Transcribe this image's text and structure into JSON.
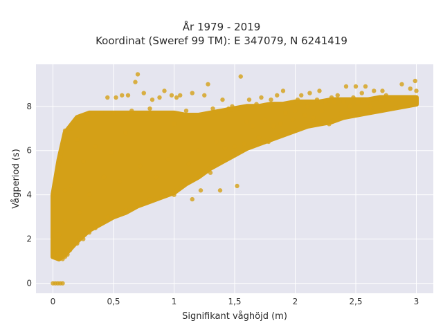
{
  "chart_data": {
    "type": "scatter",
    "title_lines": [
      "År 1979 - 2019",
      "Koordinat (Sweref 99 TM): E 347079, N 6241419"
    ],
    "xlabel": "Signifikant våghöjd (m)",
    "ylabel": "Vågperiod (s)",
    "xlim": [
      -0.14,
      3.14
    ],
    "ylim": [
      -0.45,
      9.9
    ],
    "xticks": [
      0,
      0.5,
      1,
      1.5,
      2,
      2.5,
      3
    ],
    "xtick_labels": [
      "0",
      "0,5",
      "1",
      "1,5",
      "2",
      "2,5",
      "3"
    ],
    "yticks": [
      0,
      2,
      4,
      6,
      8
    ],
    "ytick_labels": [
      "0",
      "2",
      "4",
      "6",
      "8"
    ],
    "grid": true,
    "legend": "none",
    "colors": {
      "marker": "#d4a017",
      "plot_background": "#e5e5ef",
      "grid": "#ffffff"
    },
    "series": [
      {
        "points": [
          [
            0.0,
            0.0
          ],
          [
            0.02,
            0.0
          ],
          [
            0.04,
            0.0
          ],
          [
            0.06,
            0.0
          ],
          [
            0.08,
            0.0
          ],
          [
            0.0,
            1.3
          ],
          [
            0.0,
            2.5
          ],
          [
            0.0,
            3.4
          ],
          [
            0.0,
            4.0
          ],
          [
            0.02,
            1.4
          ],
          [
            0.02,
            4.6
          ],
          [
            0.03,
            1.5
          ],
          [
            0.04,
            1.3
          ],
          [
            0.05,
            1.2
          ],
          [
            0.05,
            2.2
          ],
          [
            0.06,
            5.7
          ],
          [
            0.08,
            1.1
          ],
          [
            0.1,
            1.2
          ],
          [
            0.1,
            2.8
          ],
          [
            0.1,
            4.2
          ],
          [
            0.1,
            6.9
          ],
          [
            0.12,
            1.3
          ],
          [
            0.14,
            1.5
          ],
          [
            0.15,
            7.0
          ],
          [
            0.15,
            4.4
          ],
          [
            0.2,
            1.8
          ],
          [
            0.2,
            6.5
          ],
          [
            0.22,
            3.2
          ],
          [
            0.25,
            2.0
          ],
          [
            0.25,
            5.5
          ],
          [
            0.28,
            7.4
          ],
          [
            0.3,
            2.3
          ],
          [
            0.3,
            4.0
          ],
          [
            0.33,
            7.6
          ],
          [
            0.35,
            2.5
          ],
          [
            0.35,
            6.2
          ],
          [
            0.4,
            2.7
          ],
          [
            0.4,
            7.7
          ],
          [
            0.42,
            4.8
          ],
          [
            0.45,
            3.0
          ],
          [
            0.45,
            8.4
          ],
          [
            0.48,
            5.9
          ],
          [
            0.5,
            3.1
          ],
          [
            0.5,
            7.7
          ],
          [
            0.52,
            8.4
          ],
          [
            0.55,
            4.6
          ],
          [
            0.57,
            8.5
          ],
          [
            0.6,
            3.3
          ],
          [
            0.6,
            6.8
          ],
          [
            0.62,
            8.5
          ],
          [
            0.65,
            7.8
          ],
          [
            0.68,
            9.1
          ],
          [
            0.7,
            3.6
          ],
          [
            0.7,
            9.45
          ],
          [
            0.72,
            5.3
          ],
          [
            0.75,
            3.6
          ],
          [
            0.75,
            8.6
          ],
          [
            0.8,
            3.8
          ],
          [
            0.8,
            7.9
          ],
          [
            0.82,
            8.3
          ],
          [
            0.85,
            4.8
          ],
          [
            0.88,
            8.4
          ],
          [
            0.9,
            3.9
          ],
          [
            0.92,
            8.7
          ],
          [
            0.95,
            5.6
          ],
          [
            0.98,
            8.5
          ],
          [
            1.0,
            4.0
          ],
          [
            1.0,
            7.2
          ],
          [
            1.02,
            8.4
          ],
          [
            1.05,
            8.5
          ],
          [
            1.08,
            4.5
          ],
          [
            1.1,
            7.8
          ],
          [
            1.12,
            5.4
          ],
          [
            1.15,
            3.8
          ],
          [
            1.15,
            8.6
          ],
          [
            1.2,
            6.0
          ],
          [
            1.22,
            4.2
          ],
          [
            1.25,
            8.5
          ],
          [
            1.28,
            9.0
          ],
          [
            1.3,
            5.0
          ],
          [
            1.32,
            7.9
          ],
          [
            1.35,
            6.4
          ],
          [
            1.38,
            4.2
          ],
          [
            1.4,
            8.3
          ],
          [
            1.42,
            6.1
          ],
          [
            1.45,
            7.9
          ],
          [
            1.48,
            8.0
          ],
          [
            1.5,
            6.2
          ],
          [
            1.52,
            4.4
          ],
          [
            1.55,
            9.35
          ],
          [
            1.58,
            6.3
          ],
          [
            1.6,
            7.3
          ],
          [
            1.62,
            8.3
          ],
          [
            1.65,
            7.1
          ],
          [
            1.68,
            8.1
          ],
          [
            1.7,
            6.6
          ],
          [
            1.72,
            8.4
          ],
          [
            1.75,
            7.4
          ],
          [
            1.78,
            6.4
          ],
          [
            1.8,
            8.3
          ],
          [
            1.82,
            7.1
          ],
          [
            1.85,
            8.5
          ],
          [
            1.88,
            7.2
          ],
          [
            1.9,
            8.7
          ],
          [
            1.92,
            7.7
          ],
          [
            1.95,
            8.1
          ],
          [
            1.98,
            7.4
          ],
          [
            2.0,
            7.8
          ],
          [
            2.02,
            8.3
          ],
          [
            2.05,
            8.5
          ],
          [
            2.08,
            7.6
          ],
          [
            2.1,
            8.0
          ],
          [
            2.12,
            8.6
          ],
          [
            2.15,
            7.5
          ],
          [
            2.18,
            8.3
          ],
          [
            2.2,
            8.7
          ],
          [
            2.22,
            7.8
          ],
          [
            2.25,
            8.2
          ],
          [
            2.28,
            7.2
          ],
          [
            2.3,
            8.4
          ],
          [
            2.32,
            8.2
          ],
          [
            2.35,
            8.5
          ],
          [
            2.38,
            7.7
          ],
          [
            2.4,
            8.2
          ],
          [
            2.42,
            8.9
          ],
          [
            2.45,
            8.0
          ],
          [
            2.48,
            8.4
          ],
          [
            2.5,
            8.9
          ],
          [
            2.52,
            8.2
          ],
          [
            2.55,
            8.6
          ],
          [
            2.58,
            8.9
          ],
          [
            2.6,
            8.3
          ],
          [
            2.62,
            8.0
          ],
          [
            2.65,
            8.7
          ],
          [
            2.7,
            8.3
          ],
          [
            2.72,
            8.7
          ],
          [
            2.75,
            8.5
          ],
          [
            2.8,
            8.3
          ],
          [
            2.88,
            9.0
          ],
          [
            2.9,
            8.4
          ],
          [
            2.95,
            8.8
          ],
          [
            2.99,
            9.15
          ],
          [
            3.0,
            8.7
          ]
        ],
        "density_band": {
          "x": [
            0.0,
            0.05,
            0.1,
            0.2,
            0.3,
            0.4,
            0.5,
            0.6,
            0.7,
            0.8,
            0.9,
            1.0,
            1.1,
            1.2,
            1.3,
            1.4,
            1.5,
            1.6,
            1.7,
            1.8,
            1.9,
            2.0,
            2.1,
            2.2,
            2.3,
            2.4,
            2.5,
            2.6,
            2.7,
            2.8,
            2.9,
            3.0
          ],
          "y_low": [
            1.2,
            1.1,
            1.3,
            1.9,
            2.4,
            2.7,
            3.0,
            3.2,
            3.5,
            3.7,
            3.9,
            4.1,
            4.5,
            4.8,
            5.2,
            5.5,
            5.8,
            6.1,
            6.3,
            6.5,
            6.7,
            6.9,
            7.1,
            7.2,
            7.3,
            7.5,
            7.6,
            7.7,
            7.8,
            7.9,
            8.0,
            8.1
          ],
          "y_high": [
            4.0,
            5.6,
            6.8,
            7.5,
            7.7,
            7.7,
            7.7,
            7.7,
            7.7,
            7.7,
            7.7,
            7.7,
            7.6,
            7.6,
            7.7,
            7.8,
            7.9,
            8.0,
            8.0,
            8.1,
            8.1,
            8.2,
            8.2,
            8.2,
            8.3,
            8.3,
            8.3,
            8.3,
            8.4,
            8.4,
            8.4,
            8.4
          ]
        }
      }
    ]
  }
}
